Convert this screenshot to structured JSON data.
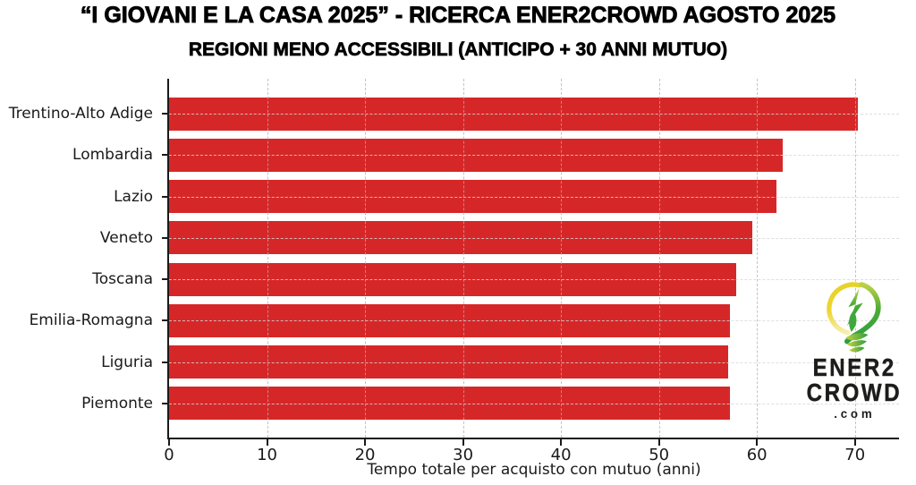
{
  "header": {
    "title": "“I GIOVANI E LA CASA 2025” - RICERCA ENER2CROWD AGOSTO 2025",
    "subtitle": "REGIONI MENO ACCESSIBILI (ANTICIPO + 30 ANNI MUTUO)"
  },
  "chart_data": {
    "type": "bar",
    "orientation": "horizontal",
    "title": "REGIONI MENO ACCESSIBILI (ANTICIPO + 30 ANNI MUTUO)",
    "categories": [
      "Trentino-Alto Adige",
      "Lombardia",
      "Lazio",
      "Veneto",
      "Toscana",
      "Emilia-Romagna",
      "Liguria",
      "Piemonte"
    ],
    "values": [
      70.3,
      62.6,
      62.0,
      59.5,
      57.9,
      57.2,
      57.1,
      57.2
    ],
    "xlabel": "Tempo totale per acquisto con mutuo (anni)",
    "ylabel": "",
    "xticks": [
      0,
      10,
      20,
      30,
      40,
      50,
      60,
      70
    ],
    "xlim": [
      0,
      74.5
    ],
    "bar_color": "#d62728",
    "grid": "dashed",
    "legend": "none"
  },
  "logo": {
    "line1": "ENER2",
    "line2": "CROWD",
    "domain": ".com",
    "icon": "lightbulb-leaf-icon",
    "colors": {
      "yellow": "#eed52f",
      "pale_yellow": "#f6eeb0",
      "green": "#3fa83c",
      "dark_green": "#2e9e41",
      "text": "#1d1d1b"
    }
  }
}
